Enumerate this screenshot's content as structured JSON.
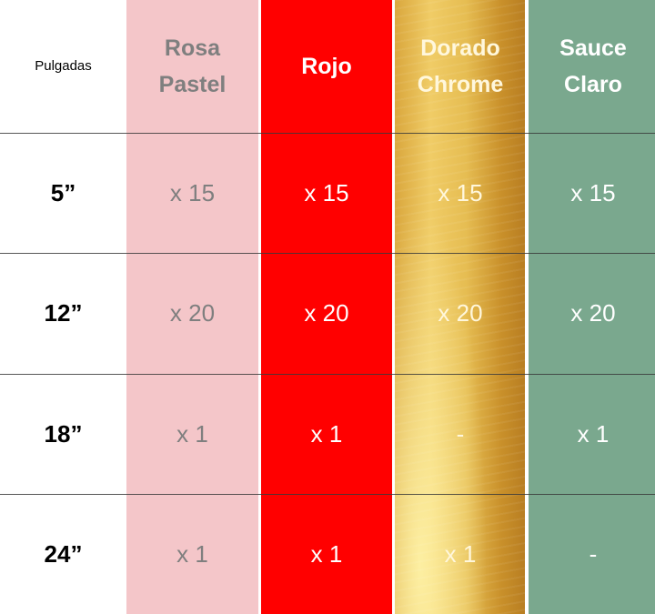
{
  "header": {
    "label": "Pulgadas",
    "columns": [
      "Rosa Pastel",
      "Rojo",
      "Dorado Chrome",
      "Sauce Claro"
    ],
    "columns_lines": [
      [
        "Rosa",
        "Pastel"
      ],
      [
        "Rojo"
      ],
      [
        "Dorado",
        "Chrome"
      ],
      [
        "Sauce",
        "Claro"
      ]
    ]
  },
  "rows": [
    {
      "size": "5”",
      "values": [
        "x 15",
        "x 15",
        "x 15",
        "x 15"
      ]
    },
    {
      "size": "12”",
      "values": [
        "x 20",
        "x 20",
        "x 20",
        "x 20"
      ]
    },
    {
      "size": "18”",
      "values": [
        "x 1",
        "x 1",
        "-",
        "x 1"
      ]
    },
    {
      "size": "24”",
      "values": [
        "x 1",
        "x 1",
        "x 1",
        "-"
      ]
    }
  ],
  "colors": {
    "rosa_pastel": "#f4c6c9",
    "rojo": "#ff0000",
    "dorado_chrome": "#e2b24a",
    "sauce_claro": "#7aa88e"
  }
}
